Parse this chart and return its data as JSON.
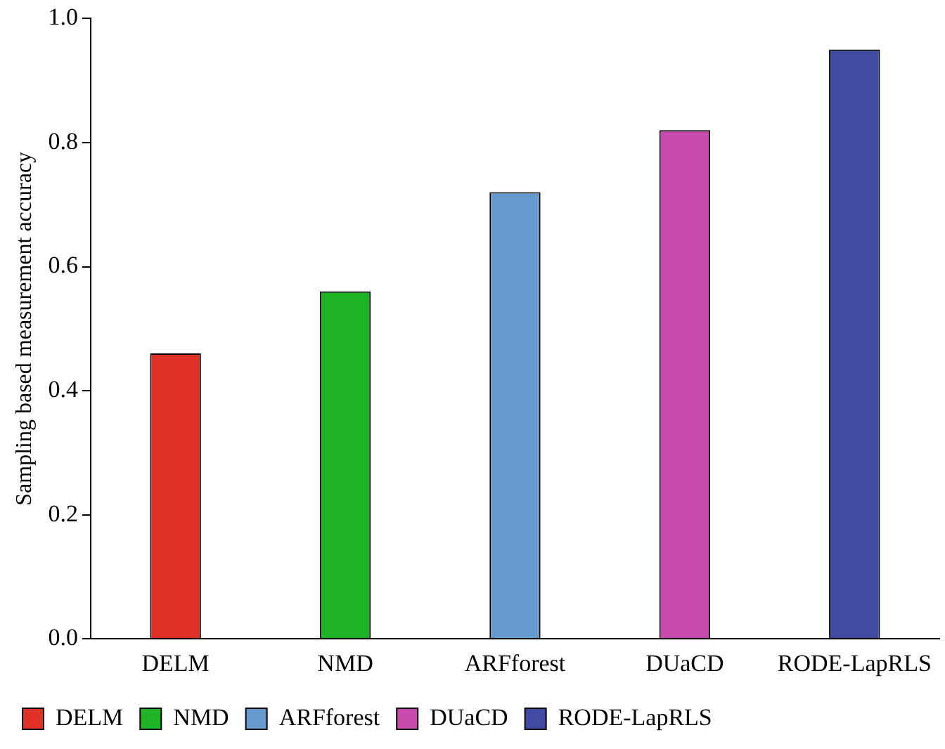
{
  "chart_data": {
    "type": "bar",
    "ylabel": "Sampling based measurement accuracy",
    "categories": [
      "DELM",
      "NMD",
      "ARFforest",
      "DUaCD",
      "RODE-LapRLS"
    ],
    "series": [
      {
        "name": "DELM",
        "color": "#e03127",
        "values": [
          0.46,
          null,
          null,
          null,
          null
        ]
      },
      {
        "name": "NMD",
        "color": "#1fb427",
        "values": [
          null,
          0.56,
          null,
          null,
          null
        ]
      },
      {
        "name": "ARFforest",
        "color": "#6699cc",
        "values": [
          null,
          null,
          0.72,
          null,
          null
        ]
      },
      {
        "name": "DUaCD",
        "color": "#c64bad",
        "values": [
          null,
          null,
          null,
          0.82,
          null
        ]
      },
      {
        "name": "RODE-LapRLS",
        "color": "#424ba4",
        "values": [
          null,
          null,
          null,
          null,
          0.95
        ]
      }
    ],
    "ylim": [
      0,
      1
    ],
    "yticks": [
      {
        "value": 0,
        "label": "0.0"
      },
      0.2,
      0.4,
      0.6,
      0.8,
      {
        "value": 1,
        "label": "1.0"
      }
    ],
    "grid": false,
    "legend": "bottom"
  }
}
